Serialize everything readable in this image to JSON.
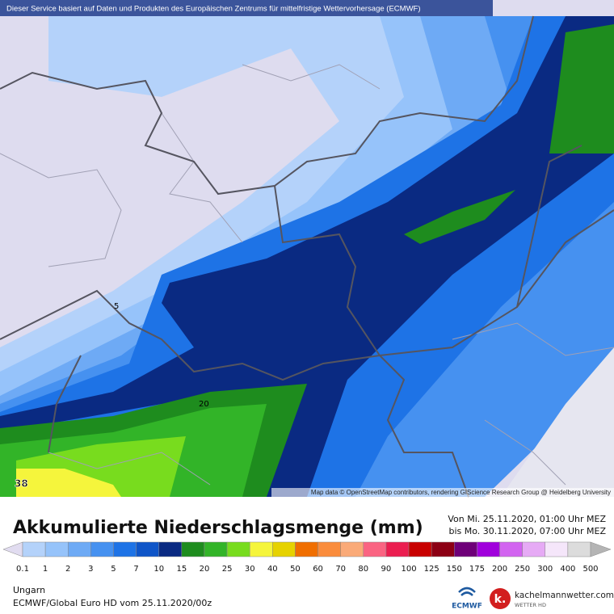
{
  "header": {
    "text": "Dieser Service basiert auf Daten und Produkten des Europäischen Zentrums für mittelfristige Wettervorhersage (ECMWF)"
  },
  "map": {
    "attribution": "Map data © OpenStreetMap contributors, rendering GIScience Research Group @ Heidelberg University",
    "contour_labels": [
      "5",
      "20",
      "38"
    ]
  },
  "title": "Akkumulierte Niederschlagsmenge (mm)",
  "period": [
    "Von Mi. 25.11.2020, 01:00 Uhr MEZ",
    "bis Mo. 30.11.2020, 07:00 Uhr MEZ"
  ],
  "legend": {
    "labels": [
      "0.1",
      "1",
      "2",
      "3",
      "5",
      "7",
      "10",
      "15",
      "20",
      "25",
      "30",
      "40",
      "50",
      "60",
      "70",
      "80",
      "90",
      "100",
      "125",
      "150",
      "175",
      "200",
      "250",
      "300",
      "400",
      "500"
    ],
    "colors": [
      "#e1dcf0",
      "#b4d2fa",
      "#96c3fa",
      "#6eaaf5",
      "#4691f0",
      "#1e73e6",
      "#0f55c8",
      "#0a2a82",
      "#1e8c1e",
      "#32b428",
      "#78dc1e",
      "#f5f53c",
      "#e6d200",
      "#f06e00",
      "#fa8c3c",
      "#faaa78",
      "#fa6482",
      "#eb1e50",
      "#c80000",
      "#8c0014",
      "#6e0078",
      "#a000dc",
      "#d264f0",
      "#e6aaf5",
      "#f5e6fa",
      "#dcdcdc",
      "#b4b4b4"
    ]
  },
  "footer": {
    "region": "Ungarn",
    "model": "ECMWF/Global Euro HD vom  25.11.2020/00z",
    "ecmwf_logo": "ECMWF",
    "brand_icon": "k.",
    "brand": "kachelmannwetter.com",
    "brand_sub": "WETTER HD"
  }
}
